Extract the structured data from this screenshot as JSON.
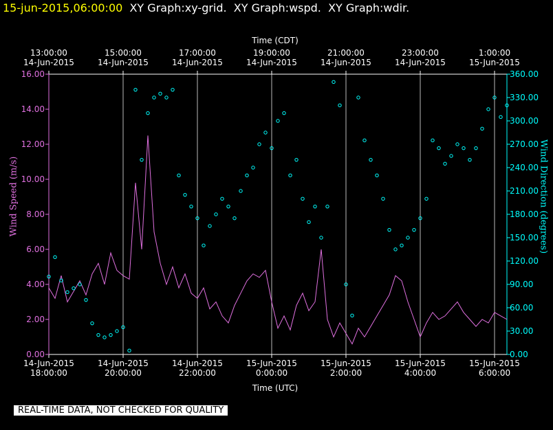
{
  "chart_data": {
    "type": "line-scatter",
    "header": {
      "stamp": "15-jun-2015,06:00:00",
      "title": "XY Graph:xy-grid.  XY Graph:wspd.  XY Graph:wdir."
    },
    "x_top_label": "Time (CDT)",
    "x_label": "Time (UTC)",
    "y_label": "Wind Speed (m/s)",
    "y2_label": "Wind Direction (degrees)",
    "footer": "REAL-TIME DATA, NOT CHECKED FOR QUALITY",
    "grid": true,
    "xlim": [
      "2015-06-14T18:00Z",
      "2015-06-15T06:20Z"
    ],
    "xticks": [
      {
        "value": "2015-06-14T18:00Z",
        "label": "14-Jun-2015\n18:00:00"
      },
      {
        "value": "2015-06-14T20:00Z",
        "label": "14-Jun-2015\n20:00:00"
      },
      {
        "value": "2015-06-14T22:00Z",
        "label": "14-Jun-2015\n22:00:00"
      },
      {
        "value": "2015-06-15T00:00Z",
        "label": "15-Jun-2015\n0:00:00"
      },
      {
        "value": "2015-06-15T02:00Z",
        "label": "15-Jun-2015\n2:00:00"
      },
      {
        "value": "2015-06-15T04:00Z",
        "label": "15-Jun-2015\n4:00:00"
      },
      {
        "value": "2015-06-15T06:00Z",
        "label": "15-Jun-2015\n6:00:00"
      }
    ],
    "x2ticks": [
      {
        "value": "2015-06-14T18:00Z",
        "label": "13:00:00\n14-Jun-2015"
      },
      {
        "value": "2015-06-14T20:00Z",
        "label": "15:00:00\n14-Jun-2015"
      },
      {
        "value": "2015-06-14T22:00Z",
        "label": "17:00:00\n14-Jun-2015"
      },
      {
        "value": "2015-06-15T00:00Z",
        "label": "19:00:00\n14-Jun-2015"
      },
      {
        "value": "2015-06-15T02:00Z",
        "label": "21:00:00\n14-Jun-2015"
      },
      {
        "value": "2015-06-15T04:00Z",
        "label": "23:00:00\n14-Jun-2015"
      },
      {
        "value": "2015-06-15T06:00Z",
        "label": "1:00:00\n15-Jun-2015"
      }
    ],
    "ylim": [
      0,
      16
    ],
    "yticks": [
      {
        "value": 0,
        "label": "0.00"
      },
      {
        "value": 2,
        "label": "2.00"
      },
      {
        "value": 4,
        "label": "4.00"
      },
      {
        "value": 6,
        "label": "6.00"
      },
      {
        "value": 8,
        "label": "8.00"
      },
      {
        "value": 10,
        "label": "10.00"
      },
      {
        "value": 12,
        "label": "12.00"
      },
      {
        "value": 14,
        "label": "14.00"
      },
      {
        "value": 16,
        "label": "16.00"
      }
    ],
    "y2lim": [
      0,
      360
    ],
    "y2ticks": [
      {
        "value": 0,
        "label": "0.00"
      },
      {
        "value": 30,
        "label": "30.00"
      },
      {
        "value": 60,
        "label": "60.00"
      },
      {
        "value": 90,
        "label": "90.00"
      },
      {
        "value": 120,
        "label": "120.00"
      },
      {
        "value": 150,
        "label": "150.00"
      },
      {
        "value": 180,
        "label": "180.00"
      },
      {
        "value": 210,
        "label": "210.00"
      },
      {
        "value": 240,
        "label": "240.00"
      },
      {
        "value": 270,
        "label": "270.00"
      },
      {
        "value": 300,
        "label": "300.00"
      },
      {
        "value": 330,
        "label": "330.00"
      },
      {
        "value": 360,
        "label": "360.00"
      }
    ],
    "x": [
      "2015-06-14T18:00Z",
      "2015-06-14T18:10Z",
      "2015-06-14T18:20Z",
      "2015-06-14T18:30Z",
      "2015-06-14T18:40Z",
      "2015-06-14T18:50Z",
      "2015-06-14T19:00Z",
      "2015-06-14T19:10Z",
      "2015-06-14T19:20Z",
      "2015-06-14T19:30Z",
      "2015-06-14T19:40Z",
      "2015-06-14T19:50Z",
      "2015-06-14T20:00Z",
      "2015-06-14T20:10Z",
      "2015-06-14T20:20Z",
      "2015-06-14T20:30Z",
      "2015-06-14T20:40Z",
      "2015-06-14T20:50Z",
      "2015-06-14T21:00Z",
      "2015-06-14T21:10Z",
      "2015-06-14T21:20Z",
      "2015-06-14T21:30Z",
      "2015-06-14T21:40Z",
      "2015-06-14T21:50Z",
      "2015-06-14T22:00Z",
      "2015-06-14T22:10Z",
      "2015-06-14T22:20Z",
      "2015-06-14T22:30Z",
      "2015-06-14T22:40Z",
      "2015-06-14T22:50Z",
      "2015-06-14T23:00Z",
      "2015-06-14T23:10Z",
      "2015-06-14T23:20Z",
      "2015-06-14T23:30Z",
      "2015-06-14T23:40Z",
      "2015-06-14T23:50Z",
      "2015-06-15T00:00Z",
      "2015-06-15T00:10Z",
      "2015-06-15T00:20Z",
      "2015-06-15T00:30Z",
      "2015-06-15T00:40Z",
      "2015-06-15T00:50Z",
      "2015-06-15T01:00Z",
      "2015-06-15T01:10Z",
      "2015-06-15T01:20Z",
      "2015-06-15T01:30Z",
      "2015-06-15T01:40Z",
      "2015-06-15T01:50Z",
      "2015-06-15T02:00Z",
      "2015-06-15T02:10Z",
      "2015-06-15T02:20Z",
      "2015-06-15T02:30Z",
      "2015-06-15T02:40Z",
      "2015-06-15T02:50Z",
      "2015-06-15T03:00Z",
      "2015-06-15T03:10Z",
      "2015-06-15T03:20Z",
      "2015-06-15T03:30Z",
      "2015-06-15T03:40Z",
      "2015-06-15T03:50Z",
      "2015-06-15T04:00Z",
      "2015-06-15T04:10Z",
      "2015-06-15T04:20Z",
      "2015-06-15T04:30Z",
      "2015-06-15T04:40Z",
      "2015-06-15T04:50Z",
      "2015-06-15T05:00Z",
      "2015-06-15T05:10Z",
      "2015-06-15T05:20Z",
      "2015-06-15T05:30Z",
      "2015-06-15T05:40Z",
      "2015-06-15T05:50Z",
      "2015-06-15T06:00Z",
      "2015-06-15T06:10Z",
      "2015-06-15T06:20Z"
    ],
    "series": [
      {
        "name": "wspd",
        "kind": "line",
        "color": "#e070e0",
        "values": [
          3.8,
          3.2,
          4.5,
          3.0,
          3.6,
          4.2,
          3.4,
          4.6,
          5.2,
          4.0,
          5.8,
          4.8,
          4.5,
          4.3,
          9.8,
          6.0,
          12.5,
          7.0,
          5.2,
          4.0,
          5.0,
          3.8,
          4.6,
          3.5,
          3.2,
          3.8,
          2.6,
          3.0,
          2.2,
          1.8,
          2.8,
          3.5,
          4.2,
          4.6,
          4.4,
          4.8,
          3.0,
          1.5,
          2.2,
          1.4,
          2.8,
          3.5,
          2.5,
          3.0,
          6.0,
          2.0,
          1.0,
          1.8,
          1.2,
          0.6,
          1.5,
          1.0,
          1.6,
          2.2,
          2.8,
          3.4,
          4.5,
          4.2,
          3.0,
          2.0,
          1.0,
          1.8,
          2.4,
          2.0,
          2.2,
          2.6,
          3.0,
          2.4,
          2.0,
          1.6,
          2.0,
          1.8,
          2.4,
          2.2,
          2.0
        ]
      },
      {
        "name": "wdir",
        "kind": "scatter",
        "axis": "y2",
        "color": "#00ffff",
        "values": [
          100,
          125,
          95,
          80,
          85,
          90,
          70,
          40,
          25,
          22,
          25,
          30,
          35,
          5,
          340,
          250,
          310,
          330,
          335,
          330,
          340,
          230,
          205,
          190,
          175,
          140,
          165,
          180,
          200,
          190,
          175,
          210,
          230,
          240,
          270,
          285,
          265,
          300,
          310,
          230,
          250,
          200,
          170,
          190,
          150,
          190,
          350,
          320,
          90,
          50,
          330,
          275,
          250,
          230,
          200,
          160,
          135,
          140,
          150,
          160,
          175,
          200,
          275,
          265,
          245,
          255,
          270,
          265,
          250,
          265,
          290,
          315,
          330,
          305,
          320
        ]
      }
    ]
  }
}
